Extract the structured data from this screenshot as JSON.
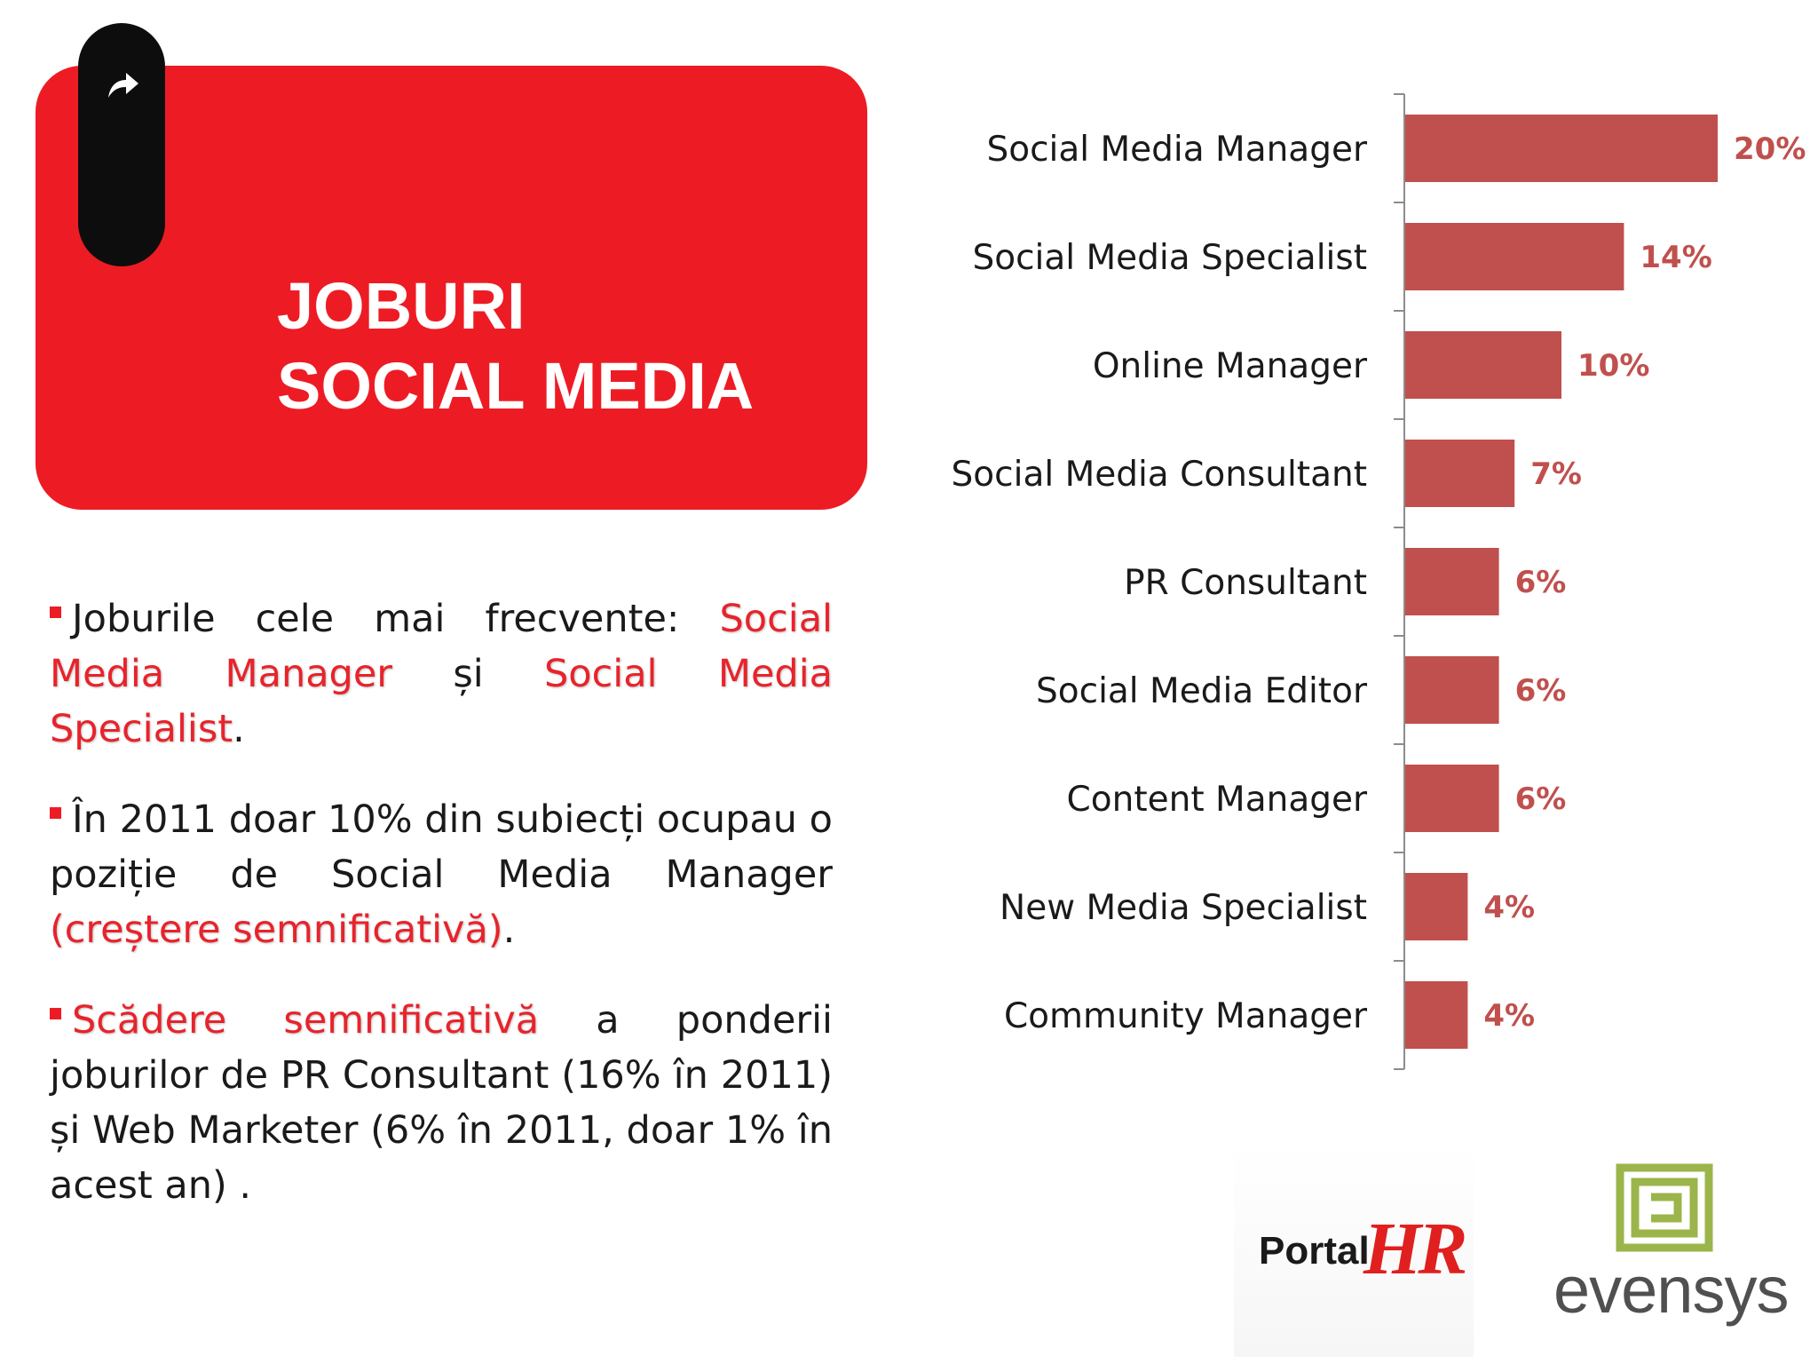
{
  "header": {
    "title_line1": "JOBURI",
    "title_line2": "SOCIAL MEDIA",
    "tab_icon": "share-arrow-icon"
  },
  "bullets": [
    {
      "parts": [
        {
          "text": "Joburile cele mai frecvente: ",
          "hl": false
        },
        {
          "text": "Social Media Manager",
          "hl": true
        },
        {
          "text": " și ",
          "hl": false
        },
        {
          "text": "Social Media Specialist",
          "hl": true
        },
        {
          "text": ".",
          "hl": false
        }
      ]
    },
    {
      "parts": [
        {
          "text": "În 2011 doar 10% din subiecți ocupau o poziție de Social Media Manager ",
          "hl": false
        },
        {
          "text": "(creștere semnificativă)",
          "hl": true
        },
        {
          "text": ".",
          "hl": false
        }
      ]
    },
    {
      "parts": [
        {
          "text": "Scădere semnificativă",
          "hl": true
        },
        {
          "text": " a ponderii joburilor de PR Consultant (16% în 2011) și Web Marketer (6% în 2011, doar 1% în acest an) .",
          "hl": false
        }
      ]
    }
  ],
  "chart_data": {
    "type": "bar",
    "orientation": "horizontal",
    "categories": [
      "Social Media Manager",
      "Social Media Specialist",
      "Online Manager",
      "Social Media Consultant",
      "PR Consultant",
      "Social Media Editor",
      "Content Manager",
      "New Media Specialist",
      "Community Manager"
    ],
    "values": [
      20,
      14,
      10,
      7,
      6,
      6,
      6,
      4,
      4
    ],
    "value_labels": [
      "20%",
      "14%",
      "10%",
      "7%",
      "6%",
      "6%",
      "6%",
      "4%",
      "4%"
    ],
    "unit": "%",
    "xlim": [
      0,
      20
    ],
    "bar_color": "#c0504d",
    "label_color": "#c0504d",
    "grid": false,
    "legend": "none"
  },
  "logos": {
    "portal_word": "Portal",
    "portal_hr": "HR",
    "evensys_word": "evensys",
    "accent_red": "#ed1c24",
    "evensys_green": "#9bb54a"
  }
}
